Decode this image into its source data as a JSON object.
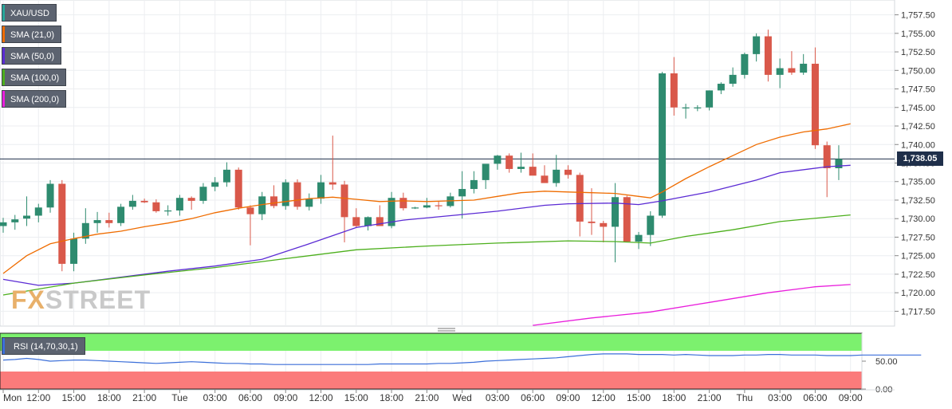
{
  "instrument": {
    "label": "XAU/USD",
    "color": "#26a69a"
  },
  "indicators": [
    {
      "label": "SMA (21,0)",
      "color": "#ef6c00"
    },
    {
      "label": "SMA (50,0)",
      "color": "#5b2bd4"
    },
    {
      "label": "SMA (100,0)",
      "color": "#4caf1c"
    },
    {
      "label": "SMA (200,0)",
      "color": "#e91edc"
    }
  ],
  "current_price_label": "1,738.05",
  "watermark": {
    "prefix": "FX",
    "suffix": "STREET"
  },
  "rsi": {
    "label": "RSI (14,70,30,1)",
    "color": "#3b6fd9",
    "ticks": [
      "50.00",
      "0.00"
    ],
    "values": [
      52,
      53,
      55,
      53,
      50,
      51,
      52,
      52,
      51,
      50,
      49,
      48,
      47,
      46,
      47,
      48,
      49,
      48,
      47,
      46,
      46,
      45,
      45,
      44,
      44,
      44,
      44,
      44,
      44,
      44,
      44,
      44,
      45,
      45,
      45,
      45,
      45,
      46,
      46,
      47,
      48,
      50,
      51,
      52,
      53,
      54,
      55,
      56,
      58,
      60,
      62,
      63,
      63,
      63,
      62,
      62,
      62,
      61,
      62,
      61,
      60,
      60,
      60,
      61,
      61,
      62,
      62,
      61,
      61,
      61,
      60,
      60,
      60,
      61,
      61,
      61,
      61,
      61,
      61
    ]
  },
  "chart_data": {
    "type": "candlestick",
    "title": "XAU/USD",
    "xlabel": "",
    "ylabel": "",
    "ylim": [
      1715.5,
      1759.5
    ],
    "y_ticks": [
      "1,757.50",
      "1,755.00",
      "1,752.50",
      "1,750.00",
      "1,747.50",
      "1,745.00",
      "1,742.50",
      "1,740.00",
      "1,737.50",
      "1,735.00",
      "1,732.50",
      "1,730.00",
      "1,727.50",
      "1,725.00",
      "1,722.50",
      "1,720.00",
      "1,717.50"
    ],
    "x_ticks": [
      {
        "label": "Mon",
        "index": 0
      },
      {
        "label": "12:00",
        "index": 3
      },
      {
        "label": "15:00",
        "index": 6
      },
      {
        "label": "18:00",
        "index": 9
      },
      {
        "label": "21:00",
        "index": 12
      },
      {
        "label": "Tue",
        "index": 15
      },
      {
        "label": "03:00",
        "index": 18
      },
      {
        "label": "06:00",
        "index": 21
      },
      {
        "label": "09:00",
        "index": 24
      },
      {
        "label": "12:00",
        "index": 27
      },
      {
        "label": "15:00",
        "index": 30
      },
      {
        "label": "18:00",
        "index": 33
      },
      {
        "label": "21:00",
        "index": 36
      },
      {
        "label": "Wed",
        "index": 39
      },
      {
        "label": "03:00",
        "index": 42
      },
      {
        "label": "06:00",
        "index": 45
      },
      {
        "label": "09:00",
        "index": 48
      },
      {
        "label": "12:00",
        "index": 51
      },
      {
        "label": "15:00",
        "index": 54
      },
      {
        "label": "18:00",
        "index": 57
      },
      {
        "label": "21:00",
        "index": 60
      },
      {
        "label": "Thu",
        "index": 63
      },
      {
        "label": "03:00",
        "index": 66
      },
      {
        "label": "06:00",
        "index": 69
      },
      {
        "label": "09:00",
        "index": 72
      }
    ],
    "current_price": 1738.05,
    "candles": [
      [
        1729.0,
        1730.1,
        1728.1,
        1729.5
      ],
      [
        1729.5,
        1730.5,
        1728.5,
        1729.9
      ],
      [
        1730.0,
        1733.0,
        1729.0,
        1730.4
      ],
      [
        1730.4,
        1732.0,
        1729.5,
        1731.5
      ],
      [
        1731.5,
        1735.2,
        1730.8,
        1734.7
      ],
      [
        1734.7,
        1735.2,
        1722.9,
        1723.9
      ],
      [
        1723.9,
        1728.1,
        1722.9,
        1727.3
      ],
      [
        1727.3,
        1731.4,
        1726.6,
        1729.4
      ],
      [
        1729.4,
        1730.9,
        1728.1,
        1729.8
      ],
      [
        1729.8,
        1730.8,
        1728.8,
        1729.4
      ],
      [
        1729.4,
        1732.0,
        1729.0,
        1731.6
      ],
      [
        1731.6,
        1733.2,
        1731.2,
        1732.4
      ],
      [
        1732.4,
        1732.7,
        1732.1,
        1732.2
      ],
      [
        1732.2,
        1732.6,
        1730.8,
        1731.0
      ],
      [
        1731.0,
        1731.8,
        1730.4,
        1731.1
      ],
      [
        1731.1,
        1733.2,
        1730.4,
        1732.8
      ],
      [
        1732.8,
        1733.0,
        1731.2,
        1732.4
      ],
      [
        1732.4,
        1734.8,
        1732.0,
        1734.3
      ],
      [
        1734.3,
        1735.6,
        1733.7,
        1734.9
      ],
      [
        1734.9,
        1737.6,
        1734.3,
        1736.6
      ],
      [
        1736.6,
        1736.9,
        1731.2,
        1731.5
      ],
      [
        1731.5,
        1731.8,
        1726.4,
        1730.6
      ],
      [
        1730.6,
        1733.6,
        1729.8,
        1733.0
      ],
      [
        1733.0,
        1734.5,
        1731.4,
        1731.7
      ],
      [
        1731.7,
        1735.3,
        1731.2,
        1734.9
      ],
      [
        1734.9,
        1735.3,
        1731.2,
        1731.6
      ],
      [
        1731.6,
        1733.4,
        1731.1,
        1732.7
      ],
      [
        1732.7,
        1735.9,
        1732.0,
        1734.9
      ],
      [
        1734.9,
        1741.2,
        1733.9,
        1734.6
      ],
      [
        1734.6,
        1735.1,
        1726.8,
        1730.2
      ],
      [
        1730.2,
        1731.4,
        1728.8,
        1729.0
      ],
      [
        1729.0,
        1730.3,
        1728.4,
        1730.2
      ],
      [
        1730.2,
        1731.8,
        1729.3,
        1729.0
      ],
      [
        1729.0,
        1733.6,
        1728.7,
        1732.8
      ],
      [
        1732.8,
        1733.5,
        1731.1,
        1731.4
      ],
      [
        1731.4,
        1731.6,
        1731.3,
        1731.5
      ],
      [
        1731.5,
        1732.8,
        1731.4,
        1731.8
      ],
      [
        1731.8,
        1732.4,
        1731.2,
        1731.7
      ],
      [
        1731.7,
        1733.5,
        1731.5,
        1733.0
      ],
      [
        1733.0,
        1736.4,
        1730.0,
        1734.0
      ],
      [
        1734.0,
        1736.4,
        1733.4,
        1735.2
      ],
      [
        1735.2,
        1737.0,
        1734.0,
        1737.4
      ],
      [
        1737.4,
        1738.6,
        1736.6,
        1738.5
      ],
      [
        1738.5,
        1738.8,
        1736.2,
        1736.7
      ],
      [
        1736.7,
        1738.9,
        1736.2,
        1737.0
      ],
      [
        1737.0,
        1738.8,
        1735.9,
        1735.8
      ],
      [
        1735.8,
        1737.2,
        1735.2,
        1734.8
      ],
      [
        1734.8,
        1738.6,
        1734.3,
        1736.6
      ],
      [
        1736.6,
        1737.2,
        1735.4,
        1735.9
      ],
      [
        1735.9,
        1736.2,
        1727.6,
        1729.6
      ],
      [
        1729.6,
        1734.1,
        1727.8,
        1729.4
      ],
      [
        1729.4,
        1729.7,
        1726.8,
        1728.9
      ],
      [
        1728.9,
        1734.8,
        1724.1,
        1732.9
      ],
      [
        1732.9,
        1733.1,
        1726.8,
        1726.9
      ],
      [
        1726.9,
        1728.2,
        1725.9,
        1727.8
      ],
      [
        1727.8,
        1731.0,
        1726.3,
        1730.4
      ],
      [
        1730.4,
        1749.8,
        1730.1,
        1749.6
      ],
      [
        1749.6,
        1751.8,
        1743.9,
        1745.0
      ],
      [
        1745.0,
        1745.5,
        1743.5,
        1745.0
      ],
      [
        1745.0,
        1745.3,
        1744.5,
        1745.0
      ],
      [
        1745.0,
        1747.3,
        1744.6,
        1747.3
      ],
      [
        1747.3,
        1748.4,
        1746.8,
        1748.2
      ],
      [
        1748.2,
        1750.4,
        1747.8,
        1749.4
      ],
      [
        1749.4,
        1752.4,
        1748.9,
        1752.2
      ],
      [
        1752.2,
        1755.0,
        1751.2,
        1754.6
      ],
      [
        1754.6,
        1755.5,
        1748.5,
        1749.4
      ],
      [
        1749.4,
        1751.6,
        1747.6,
        1750.3
      ],
      [
        1750.3,
        1752.6,
        1749.4,
        1749.7
      ],
      [
        1749.7,
        1752.2,
        1749.4,
        1750.9
      ],
      [
        1750.9,
        1753.1,
        1739.4,
        1739.9
      ],
      [
        1739.9,
        1740.4,
        1732.9,
        1736.8
      ],
      [
        1736.8,
        1739.9,
        1735.2,
        1738.05
      ]
    ],
    "series": [
      {
        "name": "SMA (21,0)",
        "color": "#ef6c00",
        "values": [
          [
            0,
            1722.6
          ],
          [
            2,
            1725.0
          ],
          [
            4,
            1726.6
          ],
          [
            6,
            1727.3
          ],
          [
            8,
            1727.9
          ],
          [
            10,
            1728.3
          ],
          [
            12,
            1728.9
          ],
          [
            14,
            1729.4
          ],
          [
            16,
            1730.0
          ],
          [
            18,
            1730.8
          ],
          [
            20,
            1731.4
          ],
          [
            22,
            1731.9
          ],
          [
            24,
            1732.3
          ],
          [
            26,
            1732.7
          ],
          [
            28,
            1732.9
          ],
          [
            30,
            1732.6
          ],
          [
            32,
            1732.3
          ],
          [
            34,
            1732.4
          ],
          [
            36,
            1732.3
          ],
          [
            38,
            1732.4
          ],
          [
            40,
            1732.5
          ],
          [
            42,
            1733.0
          ],
          [
            44,
            1733.5
          ],
          [
            46,
            1733.7
          ],
          [
            48,
            1733.6
          ],
          [
            50,
            1733.5
          ],
          [
            52,
            1733.4
          ],
          [
            54,
            1733.0
          ],
          [
            55,
            1732.8
          ],
          [
            56,
            1733.6
          ],
          [
            58,
            1735.4
          ],
          [
            60,
            1737.0
          ],
          [
            62,
            1738.5
          ],
          [
            64,
            1740.0
          ],
          [
            66,
            1741.0
          ],
          [
            68,
            1741.7
          ],
          [
            70,
            1742.1
          ],
          [
            72,
            1742.8
          ]
        ]
      },
      {
        "name": "SMA (50,0)",
        "color": "#5b2bd4",
        "values": [
          [
            0,
            1721.8
          ],
          [
            3,
            1721.0
          ],
          [
            6,
            1721.3
          ],
          [
            10,
            1722.1
          ],
          [
            14,
            1722.9
          ],
          [
            18,
            1723.6
          ],
          [
            22,
            1724.5
          ],
          [
            26,
            1726.6
          ],
          [
            30,
            1728.8
          ],
          [
            34,
            1729.8
          ],
          [
            38,
            1730.4
          ],
          [
            42,
            1731.0
          ],
          [
            46,
            1731.8
          ],
          [
            48,
            1732.0
          ],
          [
            52,
            1732.1
          ],
          [
            54,
            1731.9
          ],
          [
            56,
            1732.4
          ],
          [
            60,
            1733.6
          ],
          [
            64,
            1735.2
          ],
          [
            66,
            1736.2
          ],
          [
            70,
            1737.0
          ],
          [
            72,
            1737.2
          ]
        ]
      },
      {
        "name": "SMA (100,0)",
        "color": "#4caf1c",
        "values": [
          [
            0,
            1719.7
          ],
          [
            6,
            1721.3
          ],
          [
            12,
            1722.4
          ],
          [
            18,
            1723.4
          ],
          [
            24,
            1724.6
          ],
          [
            30,
            1725.8
          ],
          [
            36,
            1726.3
          ],
          [
            42,
            1726.7
          ],
          [
            48,
            1727.0
          ],
          [
            52,
            1726.9
          ],
          [
            55,
            1726.7
          ],
          [
            58,
            1727.6
          ],
          [
            62,
            1728.5
          ],
          [
            66,
            1729.6
          ],
          [
            70,
            1730.2
          ],
          [
            72,
            1730.5
          ]
        ]
      },
      {
        "name": "SMA (200,0)",
        "color": "#e91edc",
        "values": [
          [
            45,
            1715.6
          ],
          [
            50,
            1716.6
          ],
          [
            55,
            1717.4
          ],
          [
            60,
            1718.7
          ],
          [
            65,
            1720.0
          ],
          [
            69,
            1720.8
          ],
          [
            72,
            1721.1
          ]
        ]
      }
    ]
  }
}
